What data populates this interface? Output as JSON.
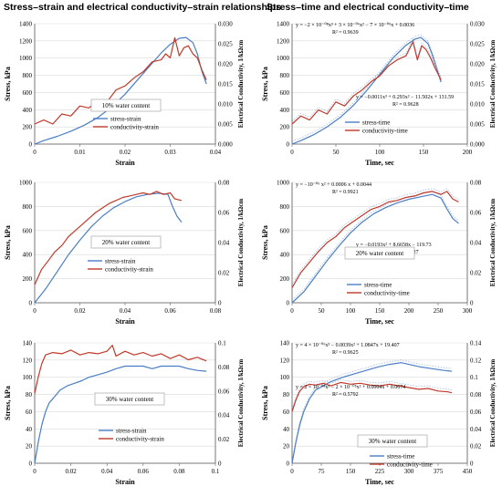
{
  "titles": {
    "left": "Stress–strain and electrical conductivity–strain relationships",
    "right": "Stress–time and electrical conductivity–time"
  },
  "colors": {
    "stress": "#4a7ec4",
    "conductivity": "#c0392b",
    "trend": "#6a8fc8"
  },
  "chart_data": [
    {
      "type": "line",
      "xlabel": "Strain",
      "ylabel": "Stress, kPa",
      "y2label": "Electrical Conductivity, 1/kΩcm",
      "xlim": [
        0,
        0.04
      ],
      "ylim": [
        0,
        1400
      ],
      "y2lim": [
        0,
        0.03
      ],
      "xticks": [
        "0",
        "0.01",
        "0.02",
        "0.03",
        "0.04"
      ],
      "yticks": [
        "0",
        "200",
        "400",
        "600",
        "800",
        "1000",
        "1200",
        "1400"
      ],
      "y2ticks": [
        "0.000",
        "0.005",
        "0.010",
        "0.015",
        "0.020",
        "0.025",
        "0.030"
      ],
      "annotation": "10% water content",
      "legend": [
        "stress-strain",
        "conductivity-strain"
      ],
      "series": [
        {
          "name": "stress-strain",
          "axis": "y",
          "x": [
            0,
            0.002,
            0.005,
            0.008,
            0.011,
            0.014,
            0.017,
            0.02,
            0.023,
            0.026,
            0.028,
            0.03,
            0.032,
            0.0335,
            0.035,
            0.036,
            0.037,
            0.038
          ],
          "values": [
            0,
            40,
            90,
            150,
            220,
            310,
            430,
            580,
            760,
            940,
            1060,
            1160,
            1230,
            1240,
            1180,
            1050,
            850,
            700
          ]
        },
        {
          "name": "conductivity-strain",
          "axis": "y2",
          "x": [
            0,
            0.002,
            0.004,
            0.006,
            0.008,
            0.01,
            0.012,
            0.014,
            0.016,
            0.018,
            0.02,
            0.022,
            0.024,
            0.026,
            0.028,
            0.029,
            0.03,
            0.031,
            0.032,
            0.033,
            0.034,
            0.035,
            0.036,
            0.037,
            0.038
          ],
          "values": [
            0.005,
            0.006,
            0.005,
            0.0075,
            0.007,
            0.0095,
            0.009,
            0.011,
            0.0105,
            0.0135,
            0.0145,
            0.0165,
            0.018,
            0.0205,
            0.021,
            0.0225,
            0.0215,
            0.0265,
            0.022,
            0.024,
            0.0245,
            0.0225,
            0.0215,
            0.0185,
            0.016
          ]
        }
      ]
    },
    {
      "type": "line",
      "xlabel": "Time, sec",
      "ylabel": "Stress, kPa",
      "y2label": "Electrical Conductivity, 1/kΩcm",
      "xlim": [
        0,
        200
      ],
      "ylim": [
        0,
        1400
      ],
      "y2lim": [
        0,
        0.03
      ],
      "xticks": [
        "0",
        "50",
        "100",
        "150",
        "200"
      ],
      "yticks": [
        "0",
        "200",
        "400",
        "600",
        "800",
        "1000",
        "1200",
        "1400"
      ],
      "y2ticks": [
        "0.000",
        "0.005",
        "0.010",
        "0.015",
        "0.020",
        "0.025",
        "0.030"
      ],
      "equations": [
        {
          "text": "y = −2 × 10⁻⁰⁸x³ + 3 × 10⁻⁰⁶x² − 7 × 10⁻⁰⁵x + 0.0036",
          "r2": "R² = 0.9639"
        },
        {
          "text": "y = −0.0011x³ + 0.293x² − 11.502x + 131.59",
          "r2": "R² = 0.9628"
        }
      ],
      "legend": [
        "stress-time",
        "conductivity-time"
      ],
      "series": [
        {
          "name": "stress-time",
          "axis": "y",
          "x": [
            0,
            10,
            25,
            40,
            55,
            70,
            85,
            100,
            115,
            130,
            140,
            147,
            155,
            160,
            165,
            170
          ],
          "values": [
            0,
            40,
            110,
            200,
            310,
            450,
            620,
            810,
            1000,
            1150,
            1220,
            1240,
            1170,
            1040,
            880,
            720
          ]
        },
        {
          "name": "conductivity-time",
          "axis": "y2",
          "x": [
            0,
            10,
            20,
            30,
            40,
            50,
            60,
            70,
            80,
            90,
            100,
            110,
            120,
            130,
            138,
            143,
            148,
            153,
            158,
            163,
            170
          ],
          "values": [
            0.005,
            0.007,
            0.006,
            0.0085,
            0.0075,
            0.0105,
            0.0095,
            0.012,
            0.0135,
            0.0155,
            0.017,
            0.0195,
            0.021,
            0.022,
            0.0255,
            0.021,
            0.0245,
            0.0235,
            0.0215,
            0.019,
            0.016
          ]
        }
      ]
    },
    {
      "type": "line",
      "xlabel": "Strain",
      "ylabel": "Stress, kPa",
      "y2label": "Electrical Conductivity, 1/kΩcm",
      "xlim": [
        0,
        0.08
      ],
      "ylim": [
        0,
        1000
      ],
      "y2lim": [
        0,
        0.08
      ],
      "xticks": [
        "0",
        "0.02",
        "0.04",
        "0.06",
        "0.08"
      ],
      "yticks": [
        "0",
        "200",
        "400",
        "600",
        "800",
        "1000"
      ],
      "y2ticks": [
        "0",
        "0.02",
        "0.04",
        "0.06",
        "0.08"
      ],
      "annotation": "20% water content",
      "legend": [
        "stress-strain",
        "conductivity-strain"
      ],
      "series": [
        {
          "name": "stress-strain",
          "axis": "y",
          "x": [
            0,
            0.005,
            0.01,
            0.015,
            0.02,
            0.025,
            0.03,
            0.035,
            0.04,
            0.045,
            0.05,
            0.055,
            0.059,
            0.061,
            0.063,
            0.065
          ],
          "values": [
            0,
            120,
            260,
            400,
            520,
            630,
            720,
            790,
            840,
            880,
            900,
            910,
            900,
            800,
            720,
            670
          ]
        },
        {
          "name": "conductivity-strain",
          "axis": "y2",
          "x": [
            0,
            0.003,
            0.006,
            0.009,
            0.012,
            0.015,
            0.018,
            0.021,
            0.024,
            0.027,
            0.03,
            0.033,
            0.036,
            0.039,
            0.042,
            0.045,
            0.048,
            0.051,
            0.054,
            0.057,
            0.06,
            0.062,
            0.065
          ],
          "values": [
            0.012,
            0.022,
            0.028,
            0.034,
            0.038,
            0.044,
            0.048,
            0.052,
            0.056,
            0.06,
            0.063,
            0.066,
            0.068,
            0.07,
            0.071,
            0.072,
            0.073,
            0.072,
            0.074,
            0.072,
            0.073,
            0.069,
            0.068
          ]
        }
      ]
    },
    {
      "type": "line",
      "xlabel": "Time, sec",
      "ylabel": "Stress, kPa",
      "y2label": "Electrical Conductivity, 1/kΩcm",
      "xlim": [
        0,
        300
      ],
      "ylim": [
        0,
        1000
      ],
      "y2lim": [
        0,
        0.08
      ],
      "xticks": [
        "0",
        "50",
        "100",
        "150",
        "200",
        "250",
        "300"
      ],
      "yticks": [
        "0",
        "200",
        "400",
        "600",
        "800",
        "1000"
      ],
      "y2ticks": [
        "0",
        "0.02",
        "0.04",
        "0.06",
        "0.08"
      ],
      "annotation": "20% water content",
      "equations": [
        {
          "text": "y = −10⁻⁰⁶ x² + 0.0006 x + 0.0044",
          "r2": "R² = 0.9921"
        },
        {
          "text": "y = −0.0193x² + 8.6658x − 119.73",
          "r2": "R² = 0.9727"
        }
      ],
      "legend": [
        "stress-time",
        "conductivity-time"
      ],
      "series": [
        {
          "name": "stress-time",
          "axis": "y",
          "x": [
            0,
            20,
            40,
            60,
            80,
            100,
            120,
            140,
            160,
            180,
            200,
            220,
            240,
            255,
            265,
            275,
            285
          ],
          "values": [
            0,
            90,
            220,
            350,
            470,
            580,
            670,
            740,
            790,
            830,
            860,
            880,
            900,
            870,
            780,
            700,
            660
          ]
        },
        {
          "name": "conductivity-time",
          "axis": "y2",
          "x": [
            0,
            15,
            30,
            45,
            60,
            75,
            90,
            105,
            120,
            135,
            150,
            165,
            180,
            195,
            210,
            225,
            240,
            255,
            265,
            275,
            285
          ],
          "values": [
            0.01,
            0.02,
            0.027,
            0.034,
            0.04,
            0.044,
            0.05,
            0.054,
            0.058,
            0.062,
            0.064,
            0.067,
            0.068,
            0.07,
            0.071,
            0.073,
            0.074,
            0.072,
            0.074,
            0.069,
            0.067
          ]
        }
      ]
    },
    {
      "type": "line",
      "xlabel": "Strain",
      "ylabel": "Stress, kPa",
      "y2label": "Electrical Conductivity, 1/kΩcm",
      "xlim": [
        0,
        0.1
      ],
      "ylim": [
        0,
        140
      ],
      "y2lim": [
        0,
        0.1
      ],
      "xticks": [
        "0",
        "0.02",
        "0.04",
        "0.06",
        "0.08",
        "0.1"
      ],
      "yticks": [
        "0",
        "20",
        "40",
        "60",
        "80",
        "100",
        "120",
        "140"
      ],
      "y2ticks": [
        "0",
        "0.02",
        "0.04",
        "0.06",
        "0.08",
        "0.1"
      ],
      "annotation": "30% water content",
      "legend": [
        "stress-strain",
        "conductivity-strain"
      ],
      "series": [
        {
          "name": "stress-strain",
          "axis": "y",
          "x": [
            0,
            0.002,
            0.004,
            0.006,
            0.008,
            0.01,
            0.012,
            0.014,
            0.018,
            0.022,
            0.026,
            0.03,
            0.035,
            0.04,
            0.045,
            0.05,
            0.06,
            0.065,
            0.07,
            0.08,
            0.085,
            0.09,
            0.095
          ],
          "values": [
            0,
            25,
            45,
            60,
            70,
            75,
            80,
            85,
            90,
            93,
            96,
            100,
            103,
            106,
            110,
            113,
            113,
            110,
            113,
            113,
            110,
            108,
            107
          ]
        },
        {
          "name": "conductivity-strain",
          "axis": "y2",
          "x": [
            0,
            0.002,
            0.004,
            0.006,
            0.01,
            0.015,
            0.02,
            0.025,
            0.03,
            0.035,
            0.04,
            0.043,
            0.045,
            0.05,
            0.055,
            0.06,
            0.065,
            0.07,
            0.075,
            0.08,
            0.085,
            0.09,
            0.095
          ],
          "values": [
            0.058,
            0.072,
            0.083,
            0.09,
            0.092,
            0.091,
            0.094,
            0.09,
            0.092,
            0.091,
            0.093,
            0.098,
            0.089,
            0.093,
            0.09,
            0.092,
            0.089,
            0.091,
            0.087,
            0.09,
            0.086,
            0.088,
            0.085
          ]
        }
      ]
    },
    {
      "type": "line",
      "xlabel": "Time, sec",
      "ylabel": "Stress, kPa",
      "y2label": "Electrical Conductivity, 1/kΩcm",
      "xlim": [
        0,
        450
      ],
      "ylim": [
        0,
        140
      ],
      "y2lim": [
        0,
        0.14
      ],
      "xticks": [
        "0",
        "75",
        "150",
        "225",
        "300",
        "375",
        "450"
      ],
      "yticks": [
        "0",
        "20",
        "40",
        "60",
        "80",
        "100",
        "120",
        "140"
      ],
      "y2ticks": [
        "0",
        "0.02",
        "0.04",
        "0.06",
        "0.08",
        "0.1",
        "0.12",
        "0.14"
      ],
      "annotation": "30% water content",
      "equations": [
        {
          "text": "y = 4 × 10⁻⁰⁶x³ − 0.0039x² + 1.0847x + 19.407",
          "r2": "R² = 0.9625"
        },
        {
          "text": "y = 2 × 10⁻⁰⁸x³ − 2 × 10⁻⁰⁵x² + 0.0004x + 0.0674",
          "r2": "R² = 0.5792"
        }
      ],
      "legend": [
        "stress-time",
        "conductivity-time"
      ],
      "series": [
        {
          "name": "stress-time",
          "axis": "y",
          "x": [
            0,
            10,
            20,
            30,
            45,
            60,
            80,
            100,
            130,
            160,
            190,
            220,
            250,
            280,
            300,
            330,
            360,
            390,
            410
          ],
          "values": [
            0,
            25,
            45,
            60,
            75,
            85,
            90,
            95,
            100,
            104,
            108,
            112,
            115,
            117,
            115,
            112,
            110,
            108,
            107
          ]
        },
        {
          "name": "conductivity-time",
          "axis": "y2",
          "x": [
            0,
            10,
            20,
            30,
            45,
            60,
            80,
            100,
            125,
            150,
            175,
            200,
            225,
            250,
            275,
            300,
            325,
            350,
            375,
            400,
            410
          ],
          "values": [
            0.06,
            0.074,
            0.084,
            0.089,
            0.092,
            0.091,
            0.093,
            0.09,
            0.094,
            0.092,
            0.093,
            0.091,
            0.09,
            0.092,
            0.09,
            0.088,
            0.086,
            0.087,
            0.084,
            0.083,
            0.082
          ]
        }
      ]
    }
  ]
}
